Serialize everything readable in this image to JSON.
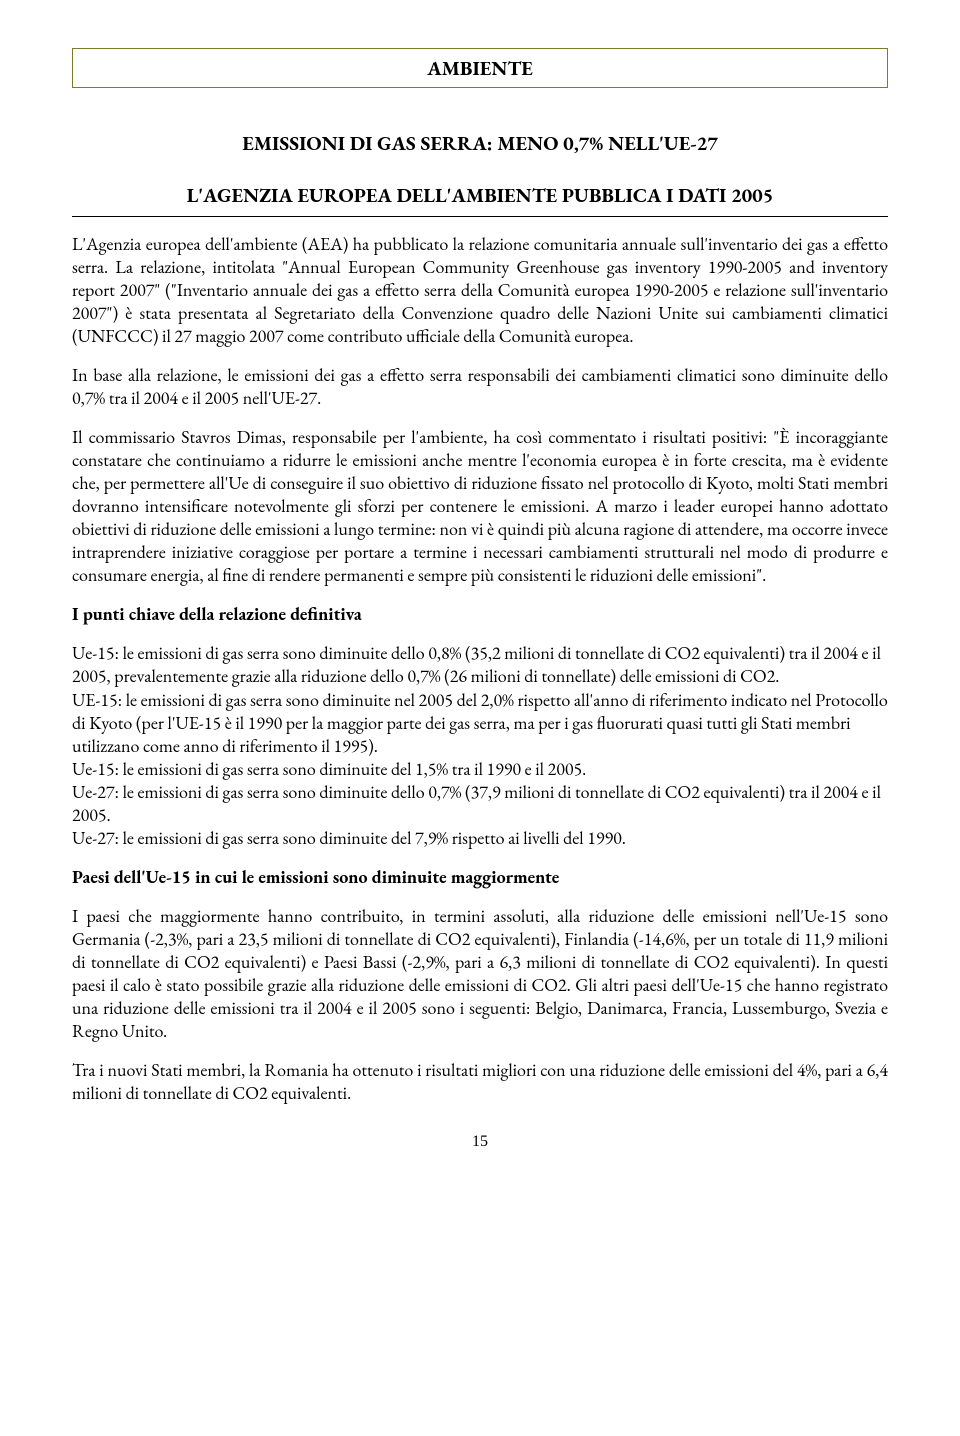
{
  "header": {
    "label": "AMBIENTE",
    "border_color": "#7a7a2a",
    "font_size_pt": 15,
    "font_weight": "bold"
  },
  "title": {
    "main": "EMISSIONI DI GAS SERRA: MENO 0,7% NELL'UE-27",
    "sub": "L'AGENZIA EUROPEA DELL'AMBIENTE PUBBLICA I DATI 2005",
    "font_size_pt": 15,
    "font_weight": "bold"
  },
  "body": {
    "font_family": "Garamond serif",
    "font_size_pt": 13.5,
    "text_color": "#000000",
    "background_color": "#ffffff",
    "paragraphs": {
      "p1": "L'Agenzia europea dell'ambiente (AEA) ha pubblicato la relazione comunitaria annuale sull'inventario dei gas a effetto serra. La relazione, intitolata \"Annual European Community Greenhouse gas inventory 1990-2005 and inventory report 2007\" (\"Inventario annuale dei gas a effetto serra della Comunità europea 1990-2005 e relazione sull'inventario 2007\") è stata presentata al Segretariato della Convenzione quadro delle Nazioni Unite sui cambiamenti climatici (UNFCCC) il 27 maggio 2007 come contributo ufficiale della Comunità europea.",
      "p2": "In base alla relazione, le emissioni dei gas a effetto serra responsabili dei cambiamenti climatici sono diminuite dello 0,7% tra il 2004 e il 2005 nell'UE-27.",
      "p3": "Il commissario Stavros Dimas, responsabile per l'ambiente, ha così commentato i risultati positivi: \"È incoraggiante constatare che continuiamo a ridurre le emissioni anche mentre l'economia europea è in forte crescita, ma è evidente che, per permettere all'Ue di conseguire il suo obiettivo di riduzione fissato nel protocollo di Kyoto, molti Stati membri dovranno intensificare notevolmente gli sforzi per contenere le emissioni. A marzo i leader europei hanno adottato obiettivi di riduzione delle emissioni a lungo termine: non vi è quindi più alcuna ragione di attendere, ma occorre invece intraprendere iniziative coraggiose per portare a termine i necessari cambiamenti strutturali nel modo di produrre e consumare energia, al fine di rendere permanenti e sempre più consistenti le riduzioni delle emissioni\"."
    },
    "sub1": "I punti chiave della relazione definitiva",
    "points": {
      "pt1": "Ue-15: le emissioni di gas serra sono diminuite dello 0,8% (35,2 milioni di tonnellate di CO2 equivalenti) tra il 2004 e il 2005, prevalentemente grazie alla riduzione dello 0,7% (26 milioni di tonnellate) delle emissioni di CO2.",
      "pt2": "UE-15: le emissioni di gas serra sono diminuite nel 2005 del 2,0% rispetto all'anno di riferimento indicato nel Protocollo di Kyoto (per l'UE-15 è il 1990 per la maggior parte dei gas serra, ma per i gas fluorurati quasi tutti gli Stati membri utilizzano come anno di riferimento il 1995).",
      "pt3": "Ue-15: le emissioni di gas serra sono diminuite del 1,5% tra il 1990 e il 2005.",
      "pt4": "Ue-27: le emissioni di gas serra sono diminuite dello 0,7% (37,9 milioni di tonnellate di CO2 equivalenti) tra il 2004 e il 2005.",
      "pt5": "Ue-27: le emissioni di gas serra sono diminuite del 7,9% rispetto ai livelli del 1990."
    },
    "sub2": "Paesi dell'Ue-15 in cui le emissioni sono diminuite maggiormente",
    "p4": "I paesi che maggiormente hanno contribuito, in termini assoluti, alla riduzione delle emissioni nell'Ue-15 sono Germania (-2,3%, pari a 23,5 milioni di tonnellate di CO2 equivalenti), Finlandia (-14,6%, per un totale di 11,9 milioni di tonnellate di CO2 equivalenti) e Paesi Bassi (-2,9%, pari a 6,3 milioni di tonnellate di CO2 equivalenti). In questi paesi il calo è stato possibile grazie alla riduzione delle emissioni di CO2. Gli altri paesi dell'Ue-15 che hanno registrato una riduzione delle emissioni tra il 2004 e il 2005 sono i seguenti: Belgio, Danimarca, Francia, Lussemburgo, Svezia e Regno Unito.",
    "p5": "Tra i nuovi Stati membri, la Romania ha ottenuto i risultati migliori con una riduzione delle emissioni del 4%, pari a 6,4 milioni di tonnellate di CO2 equivalenti."
  },
  "page_number": "15"
}
